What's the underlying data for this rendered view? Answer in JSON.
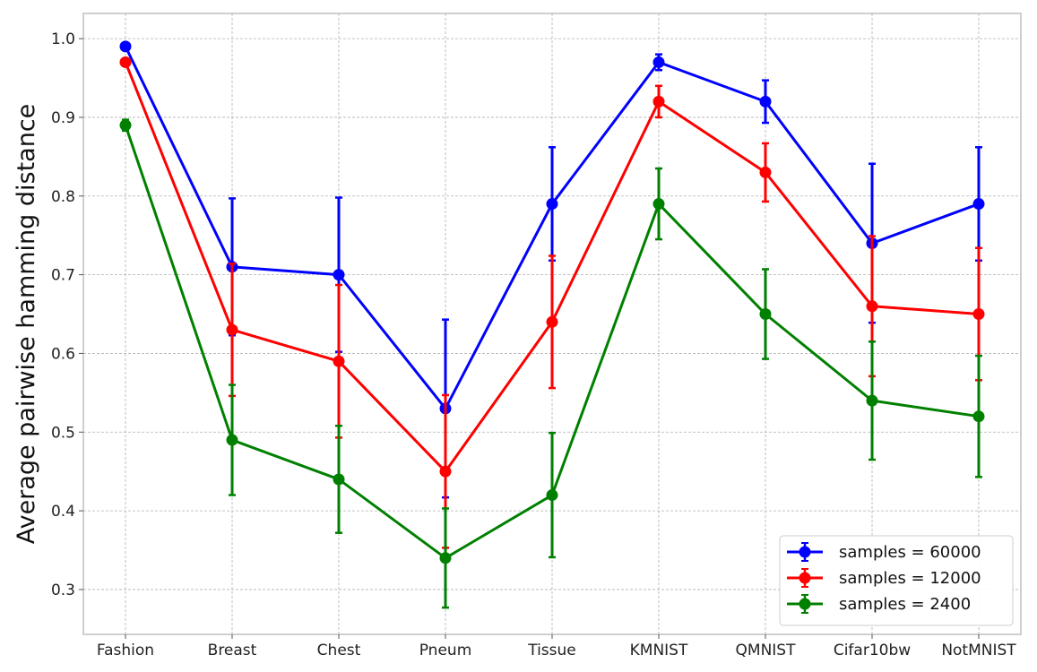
{
  "chart_data": {
    "type": "line",
    "title": "",
    "xlabel": "",
    "ylabel": "Average pairwise hamming distance",
    "categories": [
      "Fashion",
      "Breast",
      "Chest",
      "Pneum",
      "Tissue",
      "KMNIST",
      "QMNIST",
      "Cifar10bw",
      "NotMNIST"
    ],
    "ylim": [
      0.243,
      1.032
    ],
    "yticks": [
      "0.3",
      "0.4",
      "0.5",
      "0.6",
      "0.7",
      "0.8",
      "0.9",
      "1.0"
    ],
    "grid": true,
    "legend_position": "bottom-right",
    "error_bars": true,
    "series": [
      {
        "name": "samples = 60000",
        "color": "#0000ff",
        "values": [
          0.99,
          0.71,
          0.7,
          0.53,
          0.79,
          0.97,
          0.92,
          0.74,
          0.79
        ],
        "errors": [
          0.0,
          0.087,
          0.098,
          0.113,
          0.072,
          0.01,
          0.027,
          0.101,
          0.072
        ]
      },
      {
        "name": "samples = 12000",
        "color": "#ff0000",
        "values": [
          0.97,
          0.63,
          0.59,
          0.45,
          0.64,
          0.92,
          0.83,
          0.66,
          0.65
        ],
        "errors": [
          0.0,
          0.084,
          0.097,
          0.097,
          0.084,
          0.02,
          0.037,
          0.089,
          0.084
        ]
      },
      {
        "name": "samples = 2400",
        "color": "#008000",
        "values": [
          0.89,
          0.49,
          0.44,
          0.34,
          0.42,
          0.79,
          0.65,
          0.54,
          0.52
        ],
        "errors": [
          0.007,
          0.07,
          0.068,
          0.063,
          0.079,
          0.045,
          0.057,
          0.075,
          0.077
        ]
      }
    ]
  }
}
